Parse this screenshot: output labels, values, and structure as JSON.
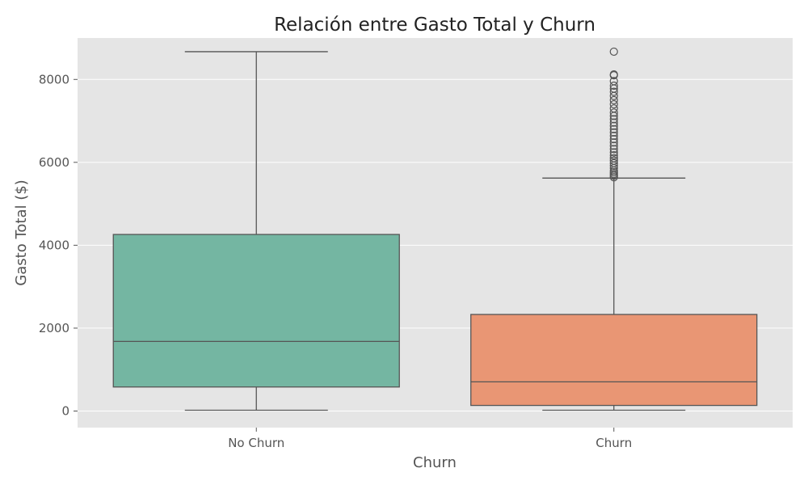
{
  "chart_data": {
    "type": "box",
    "title": "Relación entre Gasto Total y Churn",
    "xlabel": "Churn",
    "ylabel": "Gasto Total ($)",
    "ylim": [
      -400,
      9000
    ],
    "yticks": [
      0,
      2000,
      4000,
      6000,
      8000
    ],
    "grid": true,
    "categories": [
      "No Churn",
      "Churn"
    ],
    "boxes": [
      {
        "category": "No Churn",
        "whisker_low": 20,
        "q1": 580,
        "median": 1680,
        "q3": 4260,
        "whisker_high": 8670,
        "outliers": [],
        "color": "#74b6a2"
      },
      {
        "category": "Churn",
        "whisker_low": 20,
        "q1": 135,
        "median": 705,
        "q3": 2330,
        "whisker_high": 5620,
        "outliers": [
          5640,
          5680,
          5720,
          5760,
          5800,
          5860,
          5920,
          5980,
          6040,
          6100,
          6170,
          6240,
          6320,
          6400,
          6480,
          6560,
          6640,
          6720,
          6800,
          6880,
          6960,
          7040,
          7120,
          7200,
          7300,
          7400,
          7500,
          7600,
          7700,
          7780,
          7850,
          7960,
          8100,
          8120,
          8670
        ],
        "color": "#e99674"
      }
    ],
    "colors": {
      "background": "#e5e5e5",
      "grid": "#ffffff",
      "line": "#555555"
    }
  }
}
